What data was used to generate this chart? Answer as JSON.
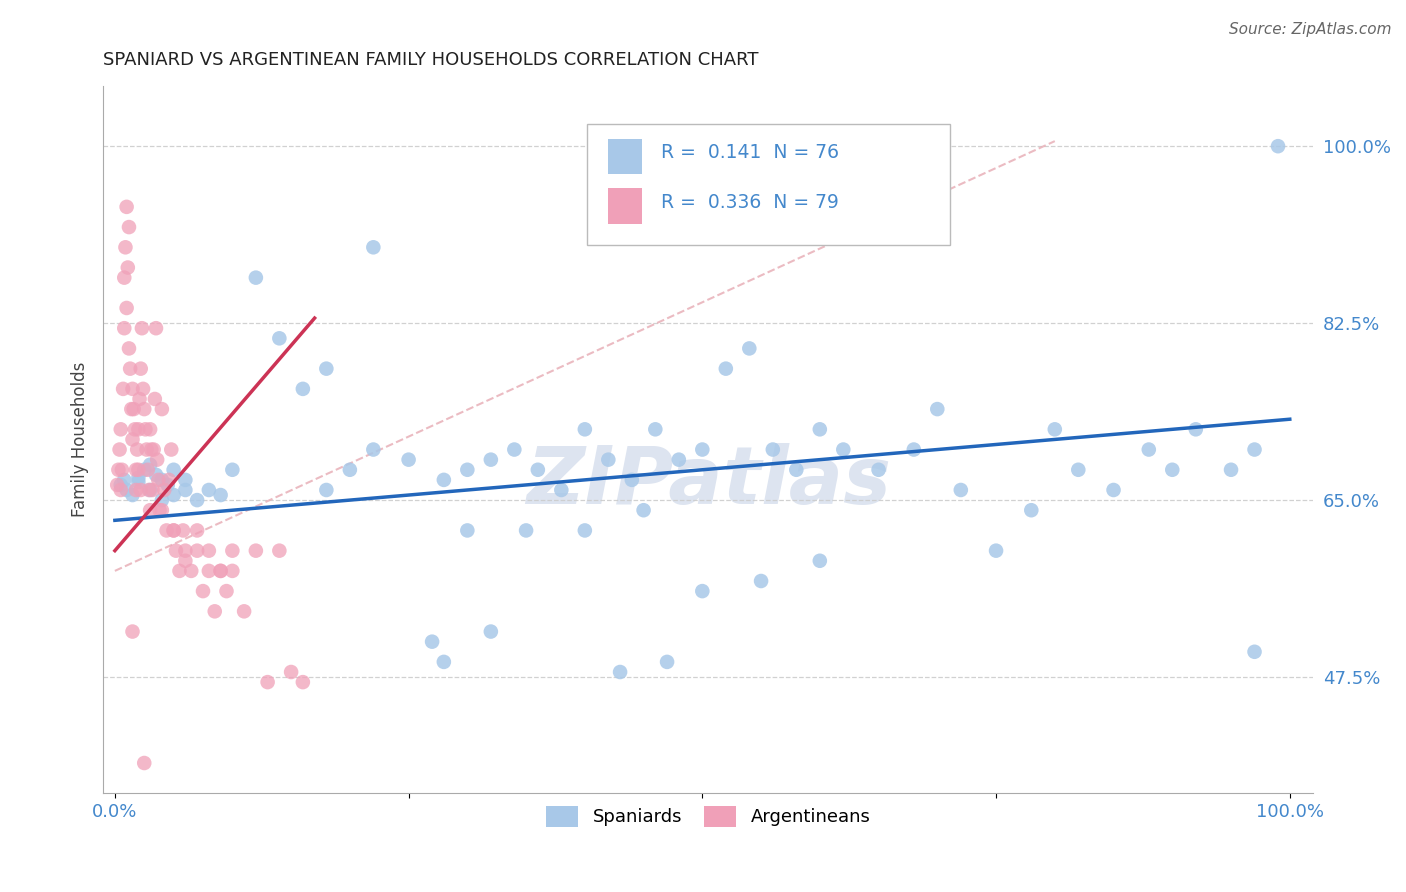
{
  "title": "SPANIARD VS ARGENTINEAN FAMILY HOUSEHOLDS CORRELATION CHART",
  "source": "Source: ZipAtlas.com",
  "ylabel": "Family Households",
  "blue_R": "0.141",
  "blue_N": "76",
  "pink_R": "0.336",
  "pink_N": "79",
  "blue_color": "#a8c8e8",
  "pink_color": "#f0a0b8",
  "blue_line_color": "#2266bb",
  "pink_line_color": "#cc3355",
  "diag_line_color": "#e8b0b8",
  "grid_color": "#cccccc",
  "watermark_color": "#dde4f0",
  "legend_label_blue": "Spaniards",
  "legend_label_pink": "Argentineans",
  "blue_scatter_x": [
    0.005,
    0.008,
    0.01,
    0.015,
    0.02,
    0.02,
    0.025,
    0.03,
    0.03,
    0.035,
    0.04,
    0.04,
    0.045,
    0.05,
    0.05,
    0.06,
    0.06,
    0.07,
    0.08,
    0.09,
    0.1,
    0.12,
    0.14,
    0.16,
    0.18,
    0.2,
    0.22,
    0.25,
    0.28,
    0.3,
    0.32,
    0.34,
    0.36,
    0.38,
    0.4,
    0.42,
    0.44,
    0.46,
    0.48,
    0.5,
    0.52,
    0.54,
    0.56,
    0.58,
    0.6,
    0.62,
    0.65,
    0.68,
    0.7,
    0.72,
    0.75,
    0.78,
    0.8,
    0.82,
    0.85,
    0.88,
    0.9,
    0.92,
    0.95,
    0.97,
    0.3,
    0.35,
    0.4,
    0.45,
    0.5,
    0.55,
    0.6,
    0.27,
    0.32,
    0.28,
    0.43,
    0.47,
    0.99,
    0.97,
    0.22,
    0.18
  ],
  "blue_scatter_y": [
    0.665,
    0.67,
    0.66,
    0.655,
    0.668,
    0.672,
    0.68,
    0.685,
    0.66,
    0.675,
    0.67,
    0.65,
    0.665,
    0.68,
    0.655,
    0.66,
    0.67,
    0.65,
    0.66,
    0.655,
    0.68,
    0.87,
    0.81,
    0.76,
    0.66,
    0.68,
    0.7,
    0.69,
    0.67,
    0.68,
    0.69,
    0.7,
    0.68,
    0.66,
    0.72,
    0.69,
    0.67,
    0.72,
    0.69,
    0.7,
    0.78,
    0.8,
    0.7,
    0.68,
    0.72,
    0.7,
    0.68,
    0.7,
    0.74,
    0.66,
    0.6,
    0.64,
    0.72,
    0.68,
    0.66,
    0.7,
    0.68,
    0.72,
    0.68,
    0.7,
    0.62,
    0.62,
    0.62,
    0.64,
    0.56,
    0.57,
    0.59,
    0.51,
    0.52,
    0.49,
    0.48,
    0.49,
    1.0,
    0.5,
    0.9,
    0.78
  ],
  "pink_scatter_x": [
    0.002,
    0.003,
    0.004,
    0.005,
    0.005,
    0.006,
    0.007,
    0.008,
    0.008,
    0.009,
    0.01,
    0.01,
    0.011,
    0.012,
    0.012,
    0.013,
    0.014,
    0.015,
    0.015,
    0.016,
    0.017,
    0.018,
    0.019,
    0.02,
    0.02,
    0.021,
    0.022,
    0.023,
    0.024,
    0.025,
    0.026,
    0.027,
    0.028,
    0.029,
    0.03,
    0.031,
    0.032,
    0.033,
    0.034,
    0.035,
    0.036,
    0.037,
    0.038,
    0.04,
    0.042,
    0.044,
    0.046,
    0.048,
    0.05,
    0.052,
    0.055,
    0.058,
    0.06,
    0.065,
    0.07,
    0.075,
    0.08,
    0.085,
    0.09,
    0.095,
    0.1,
    0.11,
    0.12,
    0.13,
    0.14,
    0.15,
    0.16,
    0.018,
    0.022,
    0.03,
    0.04,
    0.05,
    0.06,
    0.07,
    0.08,
    0.09,
    0.1,
    0.015,
    0.025
  ],
  "pink_scatter_y": [
    0.665,
    0.68,
    0.7,
    0.66,
    0.72,
    0.68,
    0.76,
    0.82,
    0.87,
    0.9,
    0.94,
    0.84,
    0.88,
    0.92,
    0.8,
    0.78,
    0.74,
    0.71,
    0.76,
    0.74,
    0.72,
    0.68,
    0.7,
    0.72,
    0.68,
    0.75,
    0.78,
    0.82,
    0.76,
    0.74,
    0.72,
    0.7,
    0.68,
    0.66,
    0.72,
    0.7,
    0.66,
    0.7,
    0.75,
    0.82,
    0.69,
    0.67,
    0.64,
    0.74,
    0.66,
    0.62,
    0.67,
    0.7,
    0.62,
    0.6,
    0.58,
    0.62,
    0.6,
    0.58,
    0.62,
    0.56,
    0.6,
    0.54,
    0.58,
    0.56,
    0.58,
    0.54,
    0.6,
    0.47,
    0.6,
    0.48,
    0.47,
    0.66,
    0.66,
    0.64,
    0.64,
    0.62,
    0.59,
    0.6,
    0.58,
    0.58,
    0.6,
    0.52,
    0.39
  ],
  "blue_line": [
    0.0,
    1.0,
    0.63,
    0.73
  ],
  "pink_line": [
    0.0,
    0.17,
    0.6,
    0.83
  ],
  "diag_line": [
    0.0,
    0.8,
    0.58,
    1.005
  ],
  "xlim": [
    -0.01,
    1.02
  ],
  "ylim": [
    0.36,
    1.06
  ],
  "xtick_positions": [
    0.0,
    0.25,
    0.5,
    0.75,
    1.0
  ],
  "xtick_labels": [
    "0.0%",
    "",
    "",
    "",
    "100.0%"
  ],
  "ytick_positions": [
    0.475,
    0.65,
    0.825,
    1.0
  ],
  "ytick_labels": [
    "47.5%",
    "65.0%",
    "82.5%",
    "100.0%"
  ],
  "tick_color": "#4488cc",
  "title_fontsize": 13,
  "source_fontsize": 11,
  "axis_label_fontsize": 12,
  "tick_fontsize": 13
}
